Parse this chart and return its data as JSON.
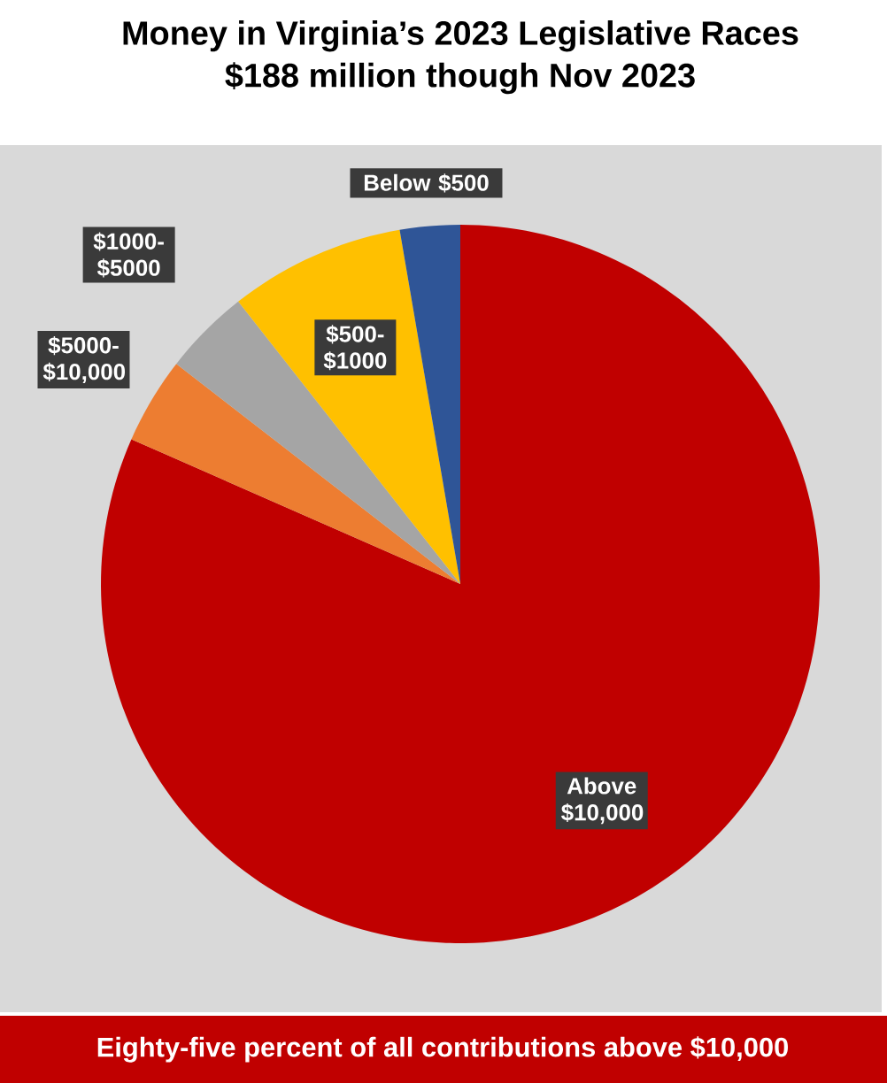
{
  "chart_data": {
    "type": "pie",
    "title": "Money in Virginia’s 2023 Legislative Races",
    "subtitle": "$188 million though Nov 2023",
    "categories": [
      "Above $10,000",
      "$5000-$10,000",
      "$1000-$5000",
      "$500-$1000",
      "Below $500"
    ],
    "values": [
      81.6,
      3.9,
      3.9,
      7.9,
      2.7
    ],
    "colors": [
      "#c00000",
      "#ed7d31",
      "#a5a5a5",
      "#ffc000",
      "#2f5597"
    ],
    "annotations": [
      "Eighty-five  percent of all contributions above $10,000"
    ]
  }
}
